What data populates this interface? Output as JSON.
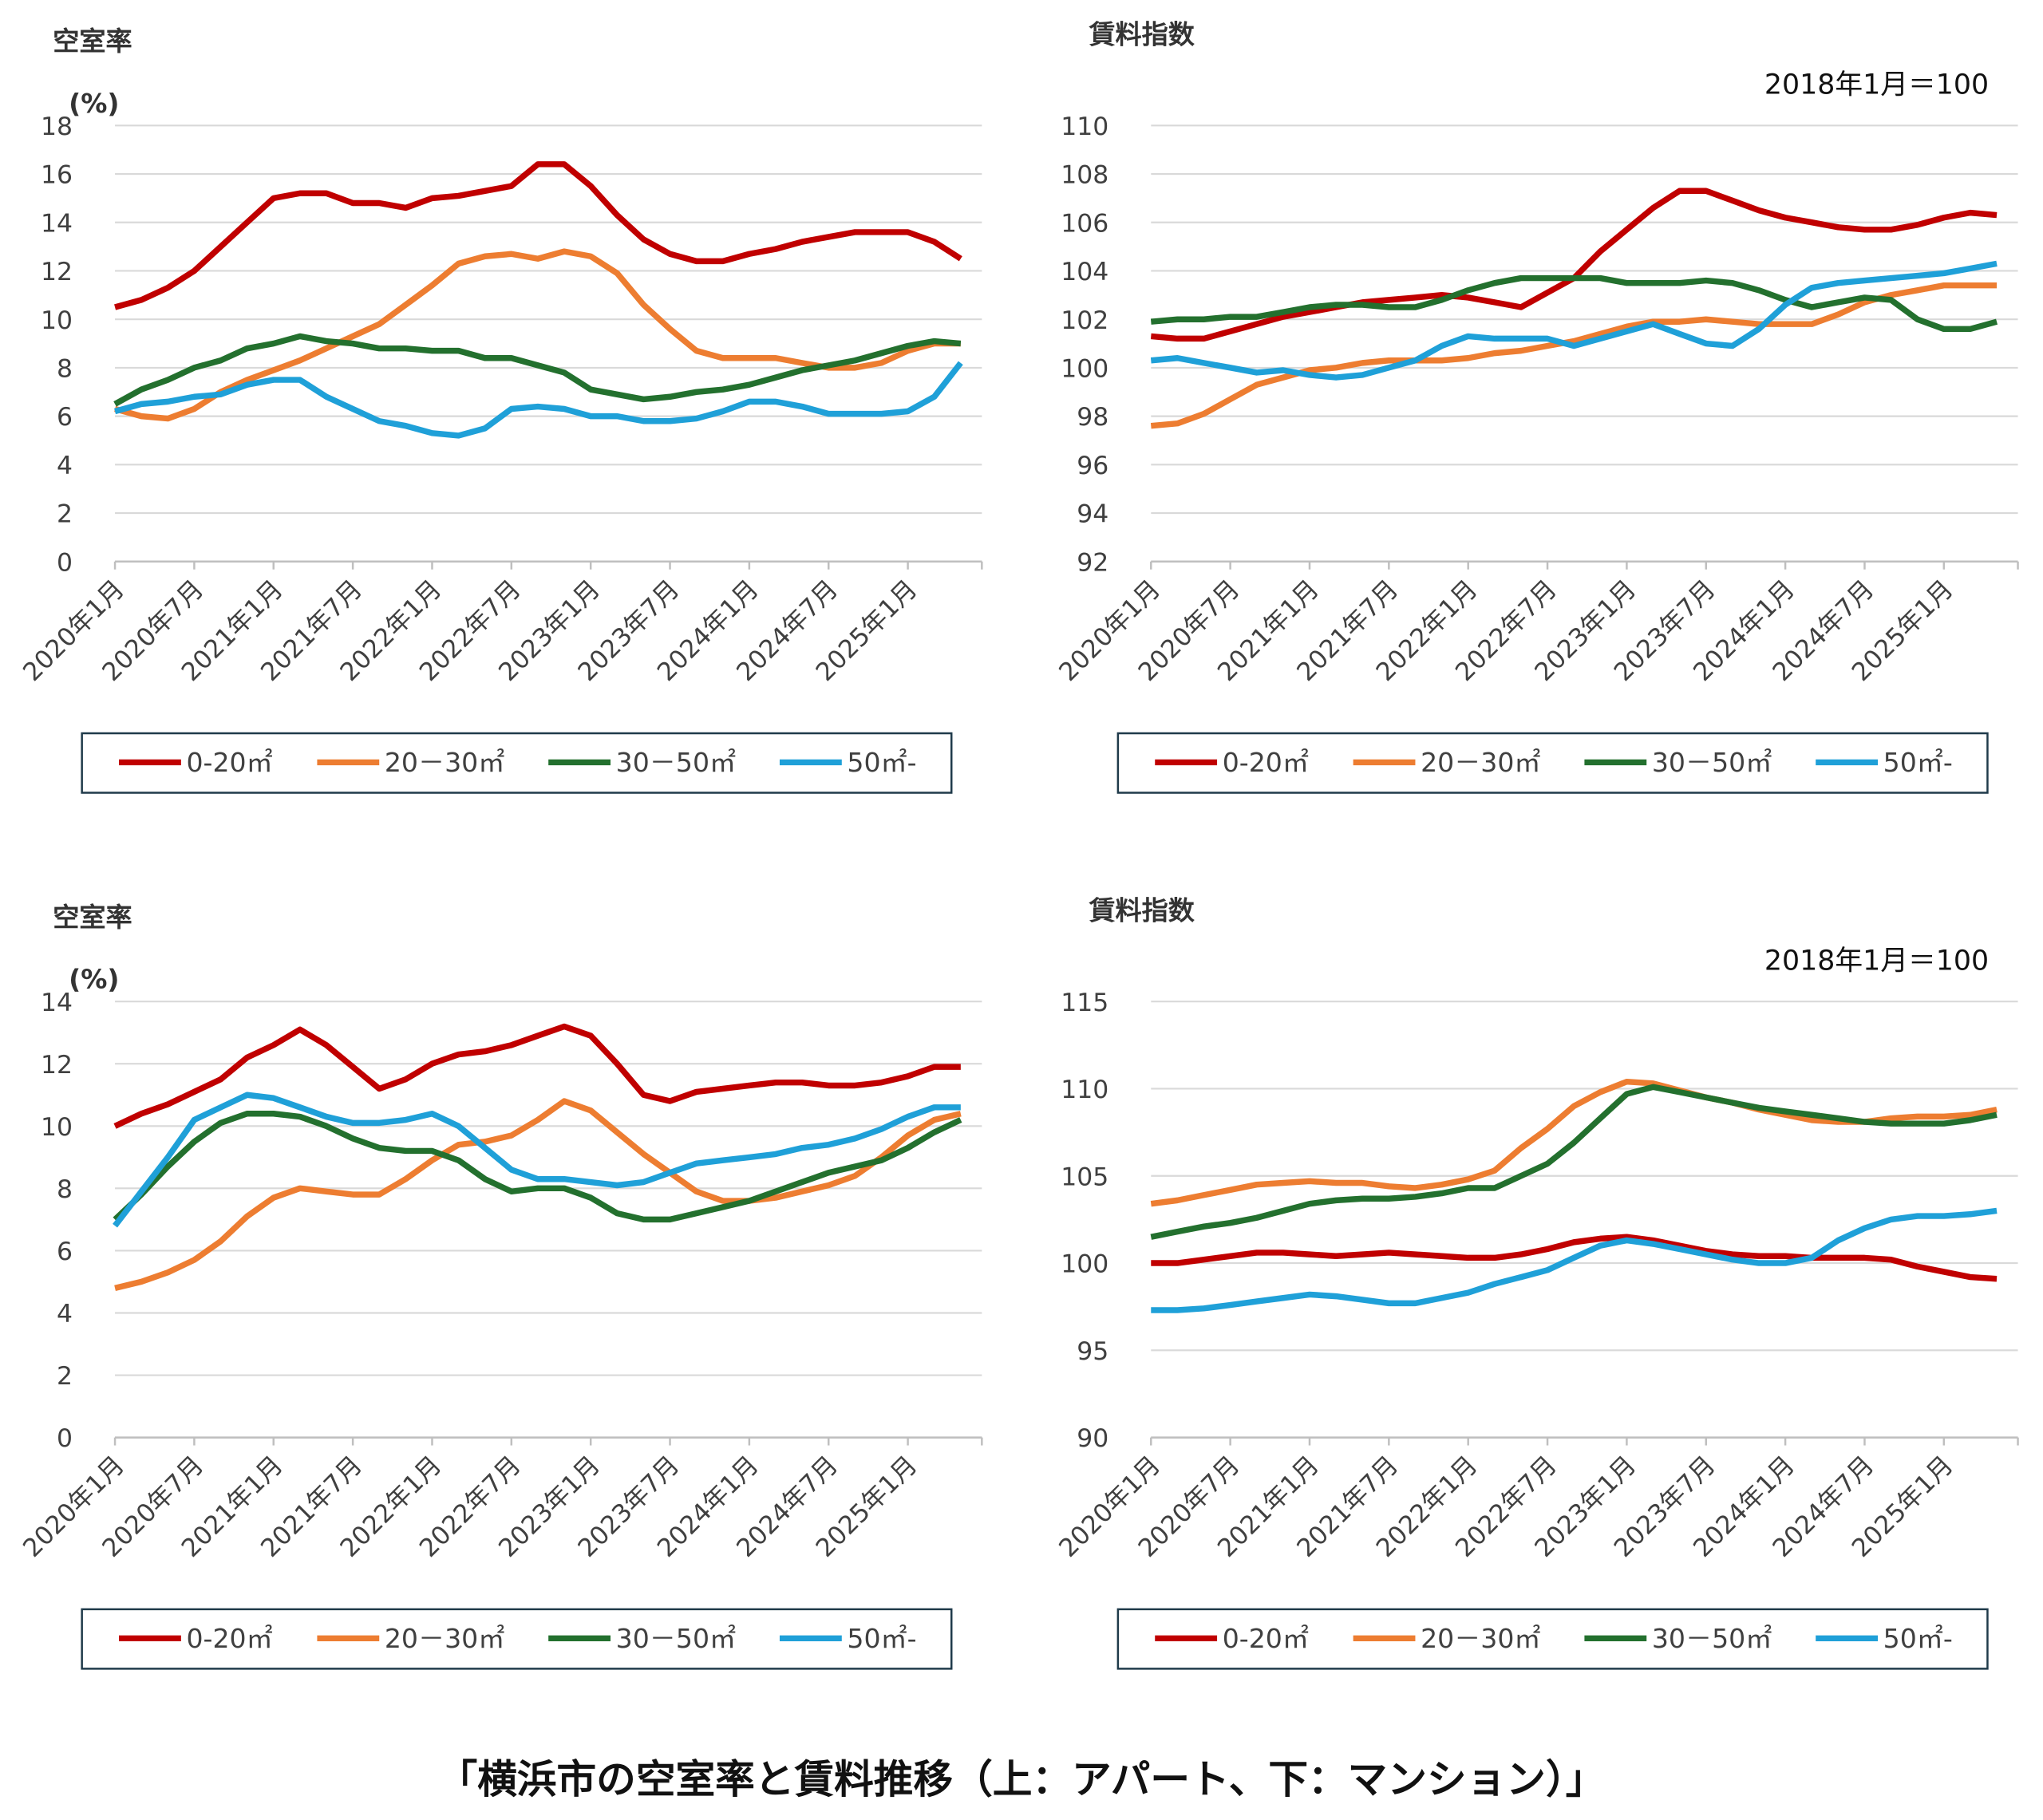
{
  "chart_data": [
    {
      "type": "line",
      "title": "空室率",
      "y_label": "(%)",
      "categories": [
        "2020年1月",
        null,
        null,
        "2020年7月",
        null,
        null,
        "2021年1月",
        null,
        null,
        "2021年7月",
        null,
        null,
        "2022年1月",
        null,
        null,
        "2022年7月",
        null,
        null,
        "2023年1月",
        null,
        null,
        "2023年7月",
        null,
        null,
        "2024年1月",
        null,
        null,
        "2024年7月",
        null,
        null,
        "2025年1月",
        null,
        null
      ],
      "ylim": [
        0,
        18
      ],
      "yticks": [
        0,
        2,
        4,
        6,
        8,
        10,
        12,
        14,
        16,
        18
      ],
      "grid": true,
      "series": [
        {
          "name": "0-20㎡",
          "color": "#c00000",
          "values": [
            10.5,
            10.8,
            11.3,
            12.0,
            13.0,
            14.0,
            15.0,
            15.2,
            15.2,
            14.8,
            14.8,
            14.6,
            15.0,
            15.1,
            15.3,
            15.5,
            16.4,
            16.4,
            15.5,
            14.3,
            13.3,
            12.7,
            12.4,
            12.4,
            12.7,
            12.9,
            13.2,
            13.4,
            13.6,
            13.6,
            13.6,
            13.2,
            12.5
          ]
        },
        {
          "name": "20－30㎡",
          "color": "#ed7d31",
          "values": [
            6.3,
            6.0,
            5.9,
            6.3,
            7.0,
            7.5,
            7.9,
            8.3,
            8.8,
            9.3,
            9.8,
            10.6,
            11.4,
            12.3,
            12.6,
            12.7,
            12.5,
            12.8,
            12.6,
            11.9,
            10.6,
            9.6,
            8.7,
            8.4,
            8.4,
            8.4,
            8.2,
            8.0,
            8.0,
            8.2,
            8.7,
            9.0,
            9.0
          ]
        },
        {
          "name": "30－50㎡",
          "color": "#23702e",
          "values": [
            6.5,
            7.1,
            7.5,
            8.0,
            8.3,
            8.8,
            9.0,
            9.3,
            9.1,
            9.0,
            8.8,
            8.8,
            8.7,
            8.7,
            8.4,
            8.4,
            8.1,
            7.8,
            7.1,
            6.9,
            6.7,
            6.8,
            7.0,
            7.1,
            7.3,
            7.6,
            7.9,
            8.1,
            8.3,
            8.6,
            8.9,
            9.1,
            9.0
          ]
        },
        {
          "name": "50㎡-",
          "color": "#1fa0d8",
          "values": [
            6.2,
            6.5,
            6.6,
            6.8,
            6.9,
            7.3,
            7.5,
            7.5,
            6.8,
            6.3,
            5.8,
            5.6,
            5.3,
            5.2,
            5.5,
            6.3,
            6.4,
            6.3,
            6.0,
            6.0,
            5.8,
            5.8,
            5.9,
            6.2,
            6.6,
            6.6,
            6.4,
            6.1,
            6.1,
            6.1,
            6.2,
            6.8,
            8.2
          ]
        }
      ]
    },
    {
      "type": "line",
      "title": "賃料指数",
      "annotation": "2018年1月＝100",
      "categories": [
        "2020年1月",
        null,
        null,
        "2020年7月",
        null,
        null,
        "2021年1月",
        null,
        null,
        "2021年7月",
        null,
        null,
        "2022年1月",
        null,
        null,
        "2022年7月",
        null,
        null,
        "2023年1月",
        null,
        null,
        "2023年7月",
        null,
        null,
        "2024年1月",
        null,
        null,
        "2024年7月",
        null,
        null,
        "2025年1月",
        null,
        null
      ],
      "ylim": [
        92,
        110
      ],
      "yticks": [
        92,
        94,
        96,
        98,
        100,
        102,
        104,
        106,
        108,
        110
      ],
      "grid": true,
      "series": [
        {
          "name": "0-20㎡",
          "color": "#c00000",
          "values": [
            101.3,
            101.2,
            101.2,
            101.5,
            101.8,
            102.1,
            102.3,
            102.5,
            102.7,
            102.8,
            102.9,
            103.0,
            102.9,
            102.7,
            102.5,
            103.1,
            103.7,
            104.8,
            105.7,
            106.6,
            107.3,
            107.3,
            106.9,
            106.5,
            106.2,
            106.0,
            105.8,
            105.7,
            105.7,
            105.9,
            106.2,
            106.4,
            106.3
          ]
        },
        {
          "name": "20－30㎡",
          "color": "#ed7d31",
          "values": [
            97.6,
            97.7,
            98.1,
            98.7,
            99.3,
            99.6,
            99.9,
            100.0,
            100.2,
            100.3,
            100.3,
            100.3,
            100.4,
            100.6,
            100.7,
            100.9,
            101.1,
            101.4,
            101.7,
            101.9,
            101.9,
            102.0,
            101.9,
            101.8,
            101.8,
            101.8,
            102.2,
            102.7,
            103.0,
            103.2,
            103.4,
            103.4,
            103.4
          ]
        },
        {
          "name": "30－50㎡",
          "color": "#23702e",
          "values": [
            101.9,
            102.0,
            102.0,
            102.1,
            102.1,
            102.3,
            102.5,
            102.6,
            102.6,
            102.5,
            102.5,
            102.8,
            103.2,
            103.5,
            103.7,
            103.7,
            103.7,
            103.7,
            103.5,
            103.5,
            103.5,
            103.6,
            103.5,
            103.2,
            102.8,
            102.5,
            102.7,
            102.9,
            102.8,
            102.0,
            101.6,
            101.6,
            101.9
          ]
        },
        {
          "name": "50㎡-",
          "color": "#1fa0d8",
          "values": [
            100.3,
            100.4,
            100.2,
            100.0,
            99.8,
            99.9,
            99.7,
            99.6,
            99.7,
            100.0,
            100.3,
            100.9,
            101.3,
            101.2,
            101.2,
            101.2,
            100.9,
            101.2,
            101.5,
            101.8,
            101.4,
            101.0,
            100.9,
            101.6,
            102.6,
            103.3,
            103.5,
            103.6,
            103.7,
            103.8,
            103.9,
            104.1,
            104.3
          ]
        }
      ]
    },
    {
      "type": "line",
      "title": "空室率",
      "y_label": "(%)",
      "categories": [
        "2020年1月",
        null,
        null,
        "2020年7月",
        null,
        null,
        "2021年1月",
        null,
        null,
        "2021年7月",
        null,
        null,
        "2022年1月",
        null,
        null,
        "2022年7月",
        null,
        null,
        "2023年1月",
        null,
        null,
        "2023年7月",
        null,
        null,
        "2024年1月",
        null,
        null,
        "2024年7月",
        null,
        null,
        "2025年1月",
        null,
        null
      ],
      "ylim": [
        0,
        14
      ],
      "yticks": [
        0,
        2,
        4,
        6,
        8,
        10,
        12,
        14
      ],
      "grid": true,
      "series": [
        {
          "name": "0-20㎡",
          "color": "#c00000",
          "values": [
            10.0,
            10.4,
            10.7,
            11.1,
            11.5,
            12.2,
            12.6,
            13.1,
            12.6,
            11.9,
            11.2,
            11.5,
            12.0,
            12.3,
            12.4,
            12.6,
            12.9,
            13.2,
            12.9,
            12.0,
            11.0,
            10.8,
            11.1,
            11.2,
            11.3,
            11.4,
            11.4,
            11.3,
            11.3,
            11.4,
            11.6,
            11.9,
            11.9
          ]
        },
        {
          "name": "20－30㎡",
          "color": "#ed7d31",
          "values": [
            4.8,
            5.0,
            5.3,
            5.7,
            6.3,
            7.1,
            7.7,
            8.0,
            7.9,
            7.8,
            7.8,
            8.3,
            8.9,
            9.4,
            9.5,
            9.7,
            10.2,
            10.8,
            10.5,
            9.8,
            9.1,
            8.5,
            7.9,
            7.6,
            7.6,
            7.7,
            7.9,
            8.1,
            8.4,
            9.0,
            9.7,
            10.2,
            10.4
          ]
        },
        {
          "name": "30－50㎡",
          "color": "#23702e",
          "values": [
            7.0,
            7.8,
            8.7,
            9.5,
            10.1,
            10.4,
            10.4,
            10.3,
            10.0,
            9.6,
            9.3,
            9.2,
            9.2,
            8.9,
            8.3,
            7.9,
            8.0,
            8.0,
            7.7,
            7.2,
            7.0,
            7.0,
            7.2,
            7.4,
            7.6,
            7.9,
            8.2,
            8.5,
            8.7,
            8.9,
            9.3,
            9.8,
            10.2
          ]
        },
        {
          "name": "50㎡-",
          "color": "#1fa0d8",
          "values": [
            6.8,
            7.9,
            9.0,
            10.2,
            10.6,
            11.0,
            10.9,
            10.6,
            10.3,
            10.1,
            10.1,
            10.2,
            10.4,
            10.0,
            9.3,
            8.6,
            8.3,
            8.3,
            8.2,
            8.1,
            8.2,
            8.5,
            8.8,
            8.9,
            9.0,
            9.1,
            9.3,
            9.4,
            9.6,
            9.9,
            10.3,
            10.6,
            10.6
          ]
        }
      ]
    },
    {
      "type": "line",
      "title": "賃料指数",
      "annotation": "2018年1月＝100",
      "categories": [
        "2020年1月",
        null,
        null,
        "2020年7月",
        null,
        null,
        "2021年1月",
        null,
        null,
        "2021年7月",
        null,
        null,
        "2022年1月",
        null,
        null,
        "2022年7月",
        null,
        null,
        "2023年1月",
        null,
        null,
        "2023年7月",
        null,
        null,
        "2024年1月",
        null,
        null,
        "2024年7月",
        null,
        null,
        "2025年1月",
        null,
        null
      ],
      "ylim": [
        90,
        115
      ],
      "yticks": [
        90,
        95,
        100,
        105,
        110,
        115
      ],
      "grid": true,
      "series": [
        {
          "name": "0-20㎡",
          "color": "#c00000",
          "values": [
            100.0,
            100.0,
            100.2,
            100.4,
            100.6,
            100.6,
            100.5,
            100.4,
            100.5,
            100.6,
            100.5,
            100.4,
            100.3,
            100.3,
            100.5,
            100.8,
            101.2,
            101.4,
            101.5,
            101.3,
            101.0,
            100.7,
            100.5,
            100.4,
            100.4,
            100.3,
            100.3,
            100.3,
            100.2,
            99.8,
            99.5,
            99.2,
            99.1
          ]
        },
        {
          "name": "20－30㎡",
          "color": "#ed7d31",
          "values": [
            103.4,
            103.6,
            103.9,
            104.2,
            104.5,
            104.6,
            104.7,
            104.6,
            104.6,
            104.4,
            104.3,
            104.5,
            104.8,
            105.3,
            106.6,
            107.7,
            109.0,
            109.8,
            110.4,
            110.3,
            109.9,
            109.5,
            109.2,
            108.8,
            108.5,
            108.2,
            108.1,
            108.1,
            108.3,
            108.4,
            108.4,
            108.5,
            108.8
          ]
        },
        {
          "name": "30－50㎡",
          "color": "#23702e",
          "values": [
            101.5,
            101.8,
            102.1,
            102.3,
            102.6,
            103.0,
            103.4,
            103.6,
            103.7,
            103.7,
            103.8,
            104.0,
            104.3,
            104.3,
            105.0,
            105.7,
            106.9,
            108.3,
            109.7,
            110.1,
            109.8,
            109.5,
            109.2,
            108.9,
            108.7,
            108.5,
            108.3,
            108.1,
            108.0,
            108.0,
            108.0,
            108.2,
            108.5
          ]
        },
        {
          "name": "50㎡-",
          "color": "#1fa0d8",
          "values": [
            97.3,
            97.3,
            97.4,
            97.6,
            97.8,
            98.0,
            98.2,
            98.1,
            97.9,
            97.7,
            97.7,
            98.0,
            98.3,
            98.8,
            99.2,
            99.6,
            100.3,
            101.0,
            101.3,
            101.1,
            100.8,
            100.5,
            100.2,
            100.0,
            100.0,
            100.3,
            101.3,
            102.0,
            102.5,
            102.7,
            102.7,
            102.8,
            103.0
          ]
        }
      ]
    }
  ],
  "caption": "「横浜市の空室率と賃料推移（上：アパート、下：マンション）」"
}
